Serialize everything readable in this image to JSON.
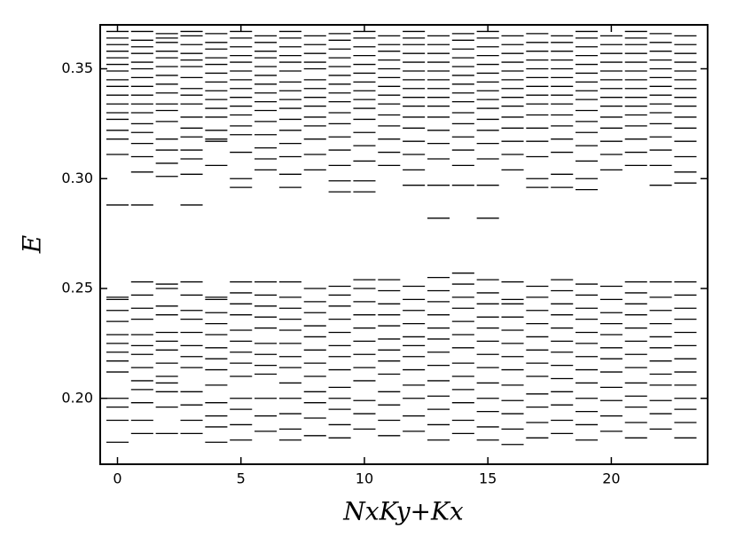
{
  "chart_data": {
    "type": "spectrum",
    "xlabel": "NxKy+Kx",
    "ylabel": "E",
    "color": "#000000",
    "xlim": [
      -0.7,
      23.9
    ],
    "ylim": [
      0.17,
      0.37
    ],
    "xticks": [
      0,
      5,
      10,
      15,
      20
    ],
    "yticks": [
      {
        "value": 0.2,
        "label": "0.20"
      },
      0.25,
      {
        "value": 0.3,
        "label": "0.30"
      },
      0.35
    ],
    "x": [
      0,
      1,
      2,
      3,
      4,
      5,
      6,
      7,
      8,
      9,
      10,
      11,
      12,
      13,
      14,
      15,
      16,
      17,
      18,
      19,
      20,
      21,
      22,
      23
    ],
    "levels": [
      [
        0.18,
        0.19,
        0.196,
        0.2,
        0.212,
        0.217,
        0.221,
        0.225,
        0.229,
        0.235,
        0.24,
        0.245,
        0.246,
        0.288,
        0.311,
        0.318,
        0.322,
        0.327,
        0.33,
        0.334,
        0.338,
        0.342,
        0.345,
        0.349,
        0.352,
        0.355,
        0.358,
        0.361,
        0.364,
        0.367
      ],
      [
        0.184,
        0.19,
        0.198,
        0.204,
        0.208,
        0.214,
        0.22,
        0.224,
        0.229,
        0.236,
        0.241,
        0.247,
        0.253,
        0.288,
        0.303,
        0.31,
        0.316,
        0.321,
        0.325,
        0.33,
        0.334,
        0.338,
        0.342,
        0.346,
        0.35,
        0.353,
        0.357,
        0.36,
        0.363,
        0.367
      ],
      [
        0.184,
        0.196,
        0.203,
        0.207,
        0.21,
        0.216,
        0.222,
        0.226,
        0.23,
        0.238,
        0.242,
        0.25,
        0.252,
        0.301,
        0.307,
        0.313,
        0.318,
        0.326,
        0.331,
        0.334,
        0.339,
        0.343,
        0.347,
        0.351,
        0.355,
        0.358,
        0.362,
        0.364,
        0.366
      ],
      [
        0.184,
        0.19,
        0.197,
        0.203,
        0.214,
        0.219,
        0.224,
        0.23,
        0.236,
        0.24,
        0.247,
        0.253,
        0.288,
        0.302,
        0.309,
        0.313,
        0.319,
        0.323,
        0.328,
        0.334,
        0.338,
        0.341,
        0.346,
        0.351,
        0.354,
        0.357,
        0.361,
        0.365,
        0.367
      ],
      [
        0.18,
        0.187,
        0.192,
        0.198,
        0.206,
        0.213,
        0.218,
        0.223,
        0.229,
        0.234,
        0.239,
        0.245,
        0.246,
        0.306,
        0.317,
        0.318,
        0.322,
        0.328,
        0.332,
        0.336,
        0.34,
        0.344,
        0.348,
        0.352,
        0.355,
        0.359,
        0.362,
        0.366
      ],
      [
        0.181,
        0.188,
        0.195,
        0.2,
        0.21,
        0.216,
        0.221,
        0.226,
        0.231,
        0.238,
        0.243,
        0.248,
        0.253,
        0.296,
        0.3,
        0.312,
        0.32,
        0.324,
        0.329,
        0.333,
        0.337,
        0.341,
        0.345,
        0.349,
        0.353,
        0.356,
        0.36,
        0.364,
        0.367
      ],
      [
        0.185,
        0.192,
        0.2,
        0.211,
        0.215,
        0.22,
        0.225,
        0.232,
        0.237,
        0.242,
        0.247,
        0.253,
        0.304,
        0.309,
        0.314,
        0.32,
        0.326,
        0.331,
        0.335,
        0.339,
        0.343,
        0.347,
        0.351,
        0.355,
        0.358,
        0.362,
        0.365
      ],
      [
        0.181,
        0.186,
        0.193,
        0.2,
        0.207,
        0.214,
        0.219,
        0.225,
        0.231,
        0.236,
        0.241,
        0.246,
        0.253,
        0.296,
        0.302,
        0.31,
        0.316,
        0.322,
        0.327,
        0.332,
        0.336,
        0.34,
        0.344,
        0.349,
        0.353,
        0.356,
        0.36,
        0.364,
        0.367
      ],
      [
        0.183,
        0.191,
        0.198,
        0.203,
        0.21,
        0.216,
        0.222,
        0.228,
        0.233,
        0.239,
        0.244,
        0.25,
        0.304,
        0.311,
        0.318,
        0.324,
        0.328,
        0.333,
        0.337,
        0.341,
        0.345,
        0.35,
        0.353,
        0.357,
        0.361,
        0.365
      ],
      [
        0.182,
        0.188,
        0.195,
        0.2,
        0.205,
        0.213,
        0.219,
        0.224,
        0.23,
        0.236,
        0.242,
        0.247,
        0.251,
        0.294,
        0.299,
        0.306,
        0.313,
        0.319,
        0.325,
        0.33,
        0.335,
        0.339,
        0.343,
        0.347,
        0.351,
        0.355,
        0.359,
        0.363,
        0.366
      ],
      [
        0.186,
        0.193,
        0.199,
        0.208,
        0.214,
        0.22,
        0.226,
        0.232,
        0.238,
        0.244,
        0.25,
        0.254,
        0.294,
        0.299,
        0.308,
        0.315,
        0.321,
        0.327,
        0.332,
        0.336,
        0.34,
        0.344,
        0.348,
        0.352,
        0.356,
        0.36,
        0.364,
        0.367
      ],
      [
        0.183,
        0.19,
        0.197,
        0.203,
        0.211,
        0.217,
        0.222,
        0.227,
        0.233,
        0.238,
        0.243,
        0.249,
        0.254,
        0.306,
        0.312,
        0.318,
        0.324,
        0.329,
        0.334,
        0.338,
        0.342,
        0.346,
        0.35,
        0.354,
        0.358,
        0.361,
        0.365
      ],
      [
        0.185,
        0.192,
        0.2,
        0.206,
        0.213,
        0.219,
        0.224,
        0.228,
        0.234,
        0.24,
        0.245,
        0.251,
        0.297,
        0.304,
        0.311,
        0.317,
        0.323,
        0.328,
        0.333,
        0.337,
        0.341,
        0.345,
        0.349,
        0.353,
        0.357,
        0.361,
        0.364,
        0.367
      ],
      [
        0.181,
        0.188,
        0.195,
        0.201,
        0.208,
        0.215,
        0.221,
        0.227,
        0.232,
        0.238,
        0.244,
        0.249,
        0.255,
        0.282,
        0.297,
        0.309,
        0.316,
        0.322,
        0.328,
        0.333,
        0.337,
        0.341,
        0.345,
        0.349,
        0.353,
        0.357,
        0.361,
        0.365
      ],
      [
        0.184,
        0.19,
        0.198,
        0.204,
        0.21,
        0.216,
        0.223,
        0.229,
        0.235,
        0.241,
        0.246,
        0.252,
        0.257,
        0.297,
        0.306,
        0.313,
        0.319,
        0.325,
        0.33,
        0.335,
        0.339,
        0.343,
        0.347,
        0.351,
        0.355,
        0.359,
        0.363,
        0.366
      ],
      [
        0.181,
        0.187,
        0.194,
        0.2,
        0.207,
        0.214,
        0.22,
        0.226,
        0.232,
        0.237,
        0.243,
        0.248,
        0.254,
        0.282,
        0.297,
        0.309,
        0.316,
        0.322,
        0.327,
        0.332,
        0.336,
        0.34,
        0.344,
        0.348,
        0.352,
        0.356,
        0.36,
        0.364,
        0.367
      ],
      [
        0.179,
        0.186,
        0.193,
        0.199,
        0.206,
        0.213,
        0.219,
        0.225,
        0.231,
        0.237,
        0.243,
        0.245,
        0.253,
        0.304,
        0.311,
        0.317,
        0.323,
        0.328,
        0.333,
        0.337,
        0.341,
        0.345,
        0.349,
        0.353,
        0.357,
        0.361,
        0.365
      ],
      [
        0.182,
        0.189,
        0.196,
        0.202,
        0.21,
        0.216,
        0.222,
        0.228,
        0.234,
        0.24,
        0.246,
        0.251,
        0.296,
        0.3,
        0.31,
        0.317,
        0.323,
        0.329,
        0.334,
        0.338,
        0.342,
        0.346,
        0.35,
        0.354,
        0.358,
        0.362,
        0.366
      ],
      [
        0.184,
        0.19,
        0.197,
        0.203,
        0.209,
        0.215,
        0.221,
        0.226,
        0.232,
        0.238,
        0.243,
        0.249,
        0.254,
        0.296,
        0.302,
        0.312,
        0.318,
        0.324,
        0.329,
        0.334,
        0.338,
        0.342,
        0.346,
        0.35,
        0.354,
        0.358,
        0.362,
        0.365
      ],
      [
        0.181,
        0.188,
        0.194,
        0.2,
        0.207,
        0.213,
        0.219,
        0.225,
        0.23,
        0.236,
        0.241,
        0.247,
        0.252,
        0.295,
        0.3,
        0.308,
        0.315,
        0.321,
        0.326,
        0.331,
        0.336,
        0.34,
        0.344,
        0.348,
        0.352,
        0.356,
        0.36,
        0.364,
        0.367
      ],
      [
        0.185,
        0.192,
        0.199,
        0.205,
        0.212,
        0.218,
        0.223,
        0.229,
        0.234,
        0.239,
        0.245,
        0.251,
        0.304,
        0.311,
        0.317,
        0.323,
        0.328,
        0.333,
        0.337,
        0.341,
        0.345,
        0.349,
        0.353,
        0.357,
        0.361,
        0.365
      ],
      [
        0.182,
        0.189,
        0.196,
        0.201,
        0.207,
        0.214,
        0.22,
        0.226,
        0.232,
        0.238,
        0.243,
        0.248,
        0.253,
        0.306,
        0.312,
        0.318,
        0.324,
        0.329,
        0.333,
        0.337,
        0.341,
        0.345,
        0.349,
        0.353,
        0.357,
        0.361,
        0.364,
        0.367
      ],
      [
        0.186,
        0.193,
        0.199,
        0.206,
        0.211,
        0.217,
        0.223,
        0.228,
        0.234,
        0.24,
        0.246,
        0.253,
        0.297,
        0.306,
        0.313,
        0.319,
        0.325,
        0.33,
        0.334,
        0.338,
        0.342,
        0.346,
        0.35,
        0.354,
        0.358,
        0.362,
        0.366
      ],
      [
        0.182,
        0.189,
        0.195,
        0.2,
        0.206,
        0.212,
        0.218,
        0.224,
        0.23,
        0.236,
        0.241,
        0.247,
        0.253,
        0.298,
        0.303,
        0.31,
        0.317,
        0.323,
        0.328,
        0.333,
        0.337,
        0.341,
        0.345,
        0.349,
        0.353,
        0.357,
        0.361,
        0.365
      ]
    ]
  }
}
